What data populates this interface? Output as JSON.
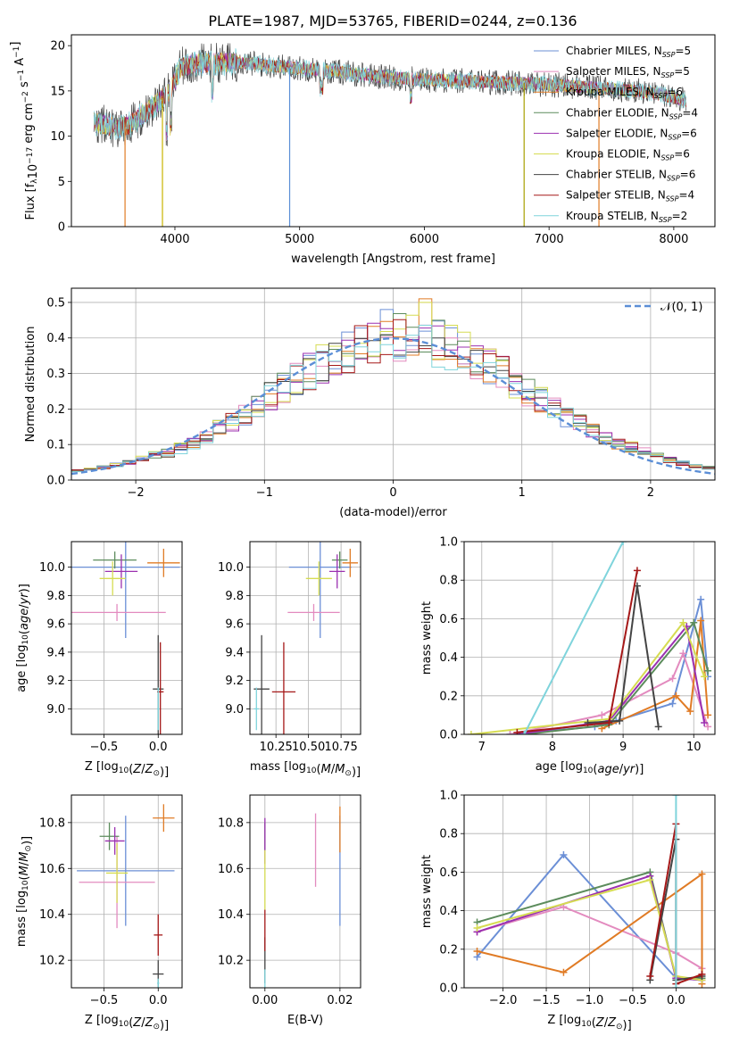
{
  "figure": {
    "title": "PLATE=1987, MJD=53765, FIBERID=0244, z=0.136"
  },
  "models": [
    {
      "label": "Chabrier MILES",
      "nssp": "5",
      "color": "#6b8fd6"
    },
    {
      "label": "Salpeter MILES",
      "nssp": "5",
      "color": "#e38bbf"
    },
    {
      "label": "Kroupa MILES",
      "nssp": "6",
      "color": "#e07b25"
    },
    {
      "label": "Chabrier ELODIE",
      "nssp": "4",
      "color": "#5c8c5c"
    },
    {
      "label": "Salpeter ELODIE",
      "nssp": "6",
      "color": "#9b30b0"
    },
    {
      "label": "Kroupa ELODIE",
      "nssp": "6",
      "color": "#d6dc52"
    },
    {
      "label": "Chabrier STELIB",
      "nssp": "6",
      "color": "#444444"
    },
    {
      "label": "Salpeter STELIB",
      "nssp": "4",
      "color": "#a51818"
    },
    {
      "label": "Kroupa STELIB",
      "nssp": "2",
      "color": "#7fd4dc"
    }
  ],
  "chart_data": [
    {
      "id": "spectrum",
      "type": "line",
      "title": "PLATE=1987, MJD=53765, FIBERID=0244, z=0.136",
      "xlabel": "wavelength [Angstrom, rest frame]",
      "ylabel": "Flux [f_λ 10^-17 erg cm^-2 s^-1 A^-1]",
      "xlim": [
        3170,
        8330
      ],
      "ylim": [
        0,
        21.2
      ],
      "xticks": [
        "4000",
        "5000",
        "6000",
        "7000",
        "8000"
      ],
      "yticks": [
        "0",
        "5",
        "10",
        "15",
        "20"
      ],
      "grid": false,
      "legend": "top-right",
      "continuum": {
        "x": [
          3350,
          3450,
          3550,
          3650,
          3750,
          3850,
          3950,
          4050,
          4150,
          4300,
          4500,
          4700,
          4900,
          5100,
          5300,
          5500,
          5700,
          5900,
          6100,
          6300,
          6500,
          6700,
          6900,
          7100,
          7300,
          7500,
          7700,
          7900,
          8100
        ],
        "y": [
          11.5,
          11.2,
          10.9,
          11.4,
          12.5,
          13.6,
          14.8,
          17.6,
          18.0,
          18.1,
          18.2,
          17.9,
          17.6,
          17.4,
          17.1,
          16.8,
          16.5,
          16.3,
          16.2,
          16.1,
          16.0,
          15.9,
          15.8,
          15.6,
          15.4,
          15.2,
          15.0,
          14.6,
          13.9
        ]
      },
      "spikes_down": [
        {
          "x": 3600,
          "y": 0
        },
        {
          "x": 3900,
          "y": 0
        },
        {
          "x": 4920,
          "y": 0
        },
        {
          "x": 6800,
          "y": 0
        },
        {
          "x": 7400,
          "y": 0
        }
      ]
    },
    {
      "id": "residuals",
      "type": "histogram",
      "xlabel": "(data-model)/error",
      "ylabel": "Normed distribution",
      "xlim": [
        -2.5,
        2.5
      ],
      "ylim": [
        0,
        0.54
      ],
      "xticks": [
        "−2",
        "−1",
        "0",
        "1",
        "2"
      ],
      "yticks": [
        "0.0",
        "0.1",
        "0.2",
        "0.3",
        "0.4",
        "0.5"
      ],
      "grid": true,
      "legend": "top-right",
      "reference": {
        "label": "𝒩(0, 1)",
        "mean": 0,
        "sigma": 1,
        "color": "#5b8ed6"
      },
      "bin_width": 0.1
    },
    {
      "id": "age-vs-Z",
      "type": "errorbar",
      "xlabel": "Z [log10(Z/Z⊙)]",
      "ylabel": "age [log10(age/yr)]",
      "xlim": [
        -0.8,
        0.22
      ],
      "ylim": [
        8.82,
        10.18
      ],
      "xticks": [
        "−0.5",
        "0.0"
      ],
      "yticks": [
        "9.0",
        "9.2",
        "9.4",
        "9.6",
        "9.8",
        "10.0"
      ],
      "grid": true,
      "points": [
        {
          "model": 0,
          "x": -0.3,
          "xerr": 0.5,
          "y": 10.0,
          "yerr": 0.5
        },
        {
          "model": 1,
          "x": -0.38,
          "xerr": 0.45,
          "y": 9.68,
          "yerr": 0.06
        },
        {
          "model": 2,
          "x": 0.05,
          "xerr": 0.15,
          "y": 10.03,
          "yerr": 0.1
        },
        {
          "model": 3,
          "x": -0.4,
          "xerr": 0.2,
          "y": 10.05,
          "yerr": 0.06
        },
        {
          "model": 4,
          "x": -0.34,
          "xerr": 0.15,
          "y": 9.97,
          "yerr": 0.12
        },
        {
          "model": 5,
          "x": -0.42,
          "xerr": 0.12,
          "y": 9.92,
          "yerr": 0.12
        },
        {
          "model": 6,
          "x": 0.0,
          "xerr": 0.05,
          "y": 9.14,
          "yerr": 0.38
        },
        {
          "model": 7,
          "x": 0.02,
          "xerr": 0.03,
          "y": 9.12,
          "yerr": 0.35
        },
        {
          "model": 8,
          "x": 0.0,
          "xerr": 0.01,
          "y": 9.0,
          "yerr": 0.15
        }
      ]
    },
    {
      "id": "age-vs-mass",
      "type": "errorbar",
      "xlabel": "mass [log10(M/M⊙)]",
      "ylabel": "",
      "xlim": [
        10.05,
        10.9
      ],
      "ylim": [
        8.82,
        10.18
      ],
      "xticks": [
        "10.25",
        "10.50",
        "10.75"
      ],
      "yticks": [
        "9.0",
        "9.2",
        "9.4",
        "9.6",
        "9.8",
        "10.0"
      ],
      "grid": true,
      "points": [
        {
          "model": 0,
          "x": 10.59,
          "xerr": 0.24,
          "y": 10.0,
          "yerr": 0.5
        },
        {
          "model": 1,
          "x": 10.54,
          "xerr": 0.2,
          "y": 9.68,
          "yerr": 0.06
        },
        {
          "model": 2,
          "x": 10.82,
          "xerr": 0.06,
          "y": 10.03,
          "yerr": 0.1
        },
        {
          "model": 3,
          "x": 10.74,
          "xerr": 0.06,
          "y": 10.05,
          "yerr": 0.06
        },
        {
          "model": 4,
          "x": 10.72,
          "xerr": 0.06,
          "y": 9.97,
          "yerr": 0.12
        },
        {
          "model": 5,
          "x": 10.58,
          "xerr": 0.1,
          "y": 9.92,
          "yerr": 0.12
        },
        {
          "model": 6,
          "x": 10.14,
          "xerr": 0.06,
          "y": 9.14,
          "yerr": 0.38
        },
        {
          "model": 7,
          "x": 10.31,
          "xerr": 0.09,
          "y": 9.12,
          "yerr": 0.35
        },
        {
          "model": 8,
          "x": 10.1,
          "xerr": 0.02,
          "y": 9.0,
          "yerr": 0.15
        }
      ]
    },
    {
      "id": "weight-vs-age",
      "type": "line",
      "xlabel": "age [log10(age/yr)]",
      "ylabel": "mass weight",
      "xlim": [
        6.75,
        10.3
      ],
      "ylim": [
        0,
        1.0
      ],
      "xticks": [
        "7",
        "8",
        "9",
        "10"
      ],
      "yticks": [
        "0.0",
        "0.2",
        "0.4",
        "0.6",
        "0.8",
        "1.0"
      ],
      "grid": true,
      "series": [
        {
          "model": 0,
          "x": [
            7.4,
            8.6,
            8.9,
            9.7,
            10.1,
            10.2
          ],
          "y": [
            0.0,
            0.04,
            0.07,
            0.16,
            0.7,
            0.3
          ]
        },
        {
          "model": 1,
          "x": [
            7.4,
            8.7,
            9.7,
            9.85,
            10.2
          ],
          "y": [
            0.0,
            0.1,
            0.29,
            0.42,
            0.04
          ]
        },
        {
          "model": 2,
          "x": [
            8.7,
            9.75,
            9.95,
            10.1,
            10.2
          ],
          "y": [
            0.03,
            0.2,
            0.12,
            0.59,
            0.1
          ]
        },
        {
          "model": 3,
          "x": [
            7.6,
            8.8,
            10.0,
            10.2
          ],
          "y": [
            0.0,
            0.05,
            0.58,
            0.33
          ]
        },
        {
          "model": 4,
          "x": [
            7.5,
            8.8,
            9.9,
            10.15
          ],
          "y": [
            0.0,
            0.07,
            0.56,
            0.06
          ]
        },
        {
          "model": 5,
          "x": [
            6.85,
            8.8,
            9.85,
            10.15
          ],
          "y": [
            0.0,
            0.08,
            0.58,
            0.3
          ]
        },
        {
          "model": 6,
          "x": [
            8.5,
            8.95,
            9.2,
            9.5
          ],
          "y": [
            0.06,
            0.07,
            0.77,
            0.04
          ]
        },
        {
          "model": 7,
          "x": [
            7.5,
            8.8,
            9.2
          ],
          "y": [
            0.01,
            0.06,
            0.85
          ]
        },
        {
          "model": 8,
          "x": [
            7.6,
            9.0
          ],
          "y": [
            0.0,
            1.0
          ]
        }
      ]
    },
    {
      "id": "mass-vs-Z",
      "type": "errorbar",
      "xlabel": "Z [log10(Z/Z⊙)]",
      "ylabel": "mass [log10(M/M⊙)]",
      "xlim": [
        -0.8,
        0.22
      ],
      "ylim": [
        10.08,
        10.92
      ],
      "xticks": [
        "−0.5",
        "0.0"
      ],
      "yticks": [
        "10.2",
        "10.4",
        "10.6",
        "10.8"
      ],
      "grid": true,
      "points": [
        {
          "model": 0,
          "x": -0.3,
          "xerr": 0.45,
          "y": 10.59,
          "yerr": 0.24
        },
        {
          "model": 1,
          "x": -0.38,
          "xerr": 0.35,
          "y": 10.54,
          "yerr": 0.2
        },
        {
          "model": 2,
          "x": 0.05,
          "xerr": 0.1,
          "y": 10.82,
          "yerr": 0.06
        },
        {
          "model": 3,
          "x": -0.45,
          "xerr": 0.09,
          "y": 10.74,
          "yerr": 0.06
        },
        {
          "model": 4,
          "x": -0.4,
          "xerr": 0.09,
          "y": 10.72,
          "yerr": 0.06
        },
        {
          "model": 5,
          "x": -0.38,
          "xerr": 0.1,
          "y": 10.58,
          "yerr": 0.13
        },
        {
          "model": 6,
          "x": 0.0,
          "xerr": 0.05,
          "y": 10.14,
          "yerr": 0.06
        },
        {
          "model": 7,
          "x": 0.0,
          "xerr": 0.04,
          "y": 10.31,
          "yerr": 0.09
        },
        {
          "model": 8,
          "x": 0.0,
          "xerr": 0.01,
          "y": 10.1,
          "yerr": 0.02
        }
      ]
    },
    {
      "id": "mass-vs-EBV",
      "type": "errorbar",
      "xlabel": "E(B-V)",
      "ylabel": "",
      "xlim": [
        -0.004,
        0.0255
      ],
      "ylim": [
        10.08,
        10.92
      ],
      "xticks": [
        "0.00",
        "0.02"
      ],
      "yticks": [
        "10.2",
        "10.4",
        "10.6",
        "10.8"
      ],
      "grid": true,
      "points": [
        {
          "model": 0,
          "x": 0.02,
          "xerr": 0,
          "y": 10.59,
          "yerr": 0.24
        },
        {
          "model": 1,
          "x": 0.0135,
          "xerr": 0,
          "y": 10.68,
          "yerr": 0.16
        },
        {
          "model": 2,
          "x": 0.02,
          "xerr": 0,
          "y": 10.77,
          "yerr": 0.1
        },
        {
          "model": 3,
          "x": 0.0,
          "xerr": 0,
          "y": 10.74,
          "yerr": 0.06
        },
        {
          "model": 4,
          "x": 0.0,
          "xerr": 0,
          "y": 10.72,
          "yerr": 0.1
        },
        {
          "model": 5,
          "x": 0.0,
          "xerr": 0,
          "y": 10.55,
          "yerr": 0.13
        },
        {
          "model": 6,
          "x": 0.0,
          "xerr": 0,
          "y": 10.2,
          "yerr": 0.1
        },
        {
          "model": 7,
          "x": 0.0,
          "xerr": 0,
          "y": 10.33,
          "yerr": 0.09
        },
        {
          "model": 8,
          "x": 0.0,
          "xerr": 0,
          "y": 10.12,
          "yerr": 0.04
        }
      ]
    },
    {
      "id": "weight-vs-Z",
      "type": "line",
      "xlabel": "Z [log10(Z/Z⊙)]",
      "ylabel": "mass weight",
      "xlim": [
        -2.45,
        0.45
      ],
      "ylim": [
        0,
        1.0
      ],
      "xticks": [
        "−2.0",
        "−1.5",
        "−1.0",
        "−0.5",
        "0.0"
      ],
      "yticks": [
        "0.0",
        "0.2",
        "0.4",
        "0.6",
        "0.8",
        "1.0"
      ],
      "grid": true,
      "series": [
        {
          "model": 0,
          "x": [
            -2.3,
            -1.3,
            0.0,
            0.3
          ],
          "y": [
            0.16,
            0.69,
            0.05,
            0.04
          ]
        },
        {
          "model": 1,
          "x": [
            -2.3,
            -1.3,
            0.0,
            0.3
          ],
          "y": [
            0.29,
            0.42,
            0.18,
            0.1
          ]
        },
        {
          "model": 2,
          "x": [
            -2.3,
            -1.3,
            0.3,
            0.3
          ],
          "y": [
            0.19,
            0.08,
            0.59,
            0.02
          ]
        },
        {
          "model": 3,
          "x": [
            -2.3,
            -0.3,
            0.0,
            0.3
          ],
          "y": [
            0.34,
            0.6,
            0.05,
            0.05
          ]
        },
        {
          "model": 4,
          "x": [
            -2.3,
            -0.3,
            0.0,
            0.3
          ],
          "y": [
            0.29,
            0.58,
            0.05,
            0.04
          ]
        },
        {
          "model": 5,
          "x": [
            -2.3,
            -0.3,
            0.0,
            0.3
          ],
          "y": [
            0.31,
            0.56,
            0.06,
            0.04
          ]
        },
        {
          "model": 6,
          "x": [
            -0.3,
            0.0,
            0.0,
            0.3
          ],
          "y": [
            0.04,
            0.77,
            0.04,
            0.06
          ]
        },
        {
          "model": 7,
          "x": [
            -0.3,
            0.0,
            0.0,
            0.3
          ],
          "y": [
            0.06,
            0.85,
            0.02,
            0.07
          ]
        },
        {
          "model": 8,
          "x": [
            0.0,
            0.0
          ],
          "y": [
            0.0,
            1.0
          ]
        }
      ]
    }
  ]
}
